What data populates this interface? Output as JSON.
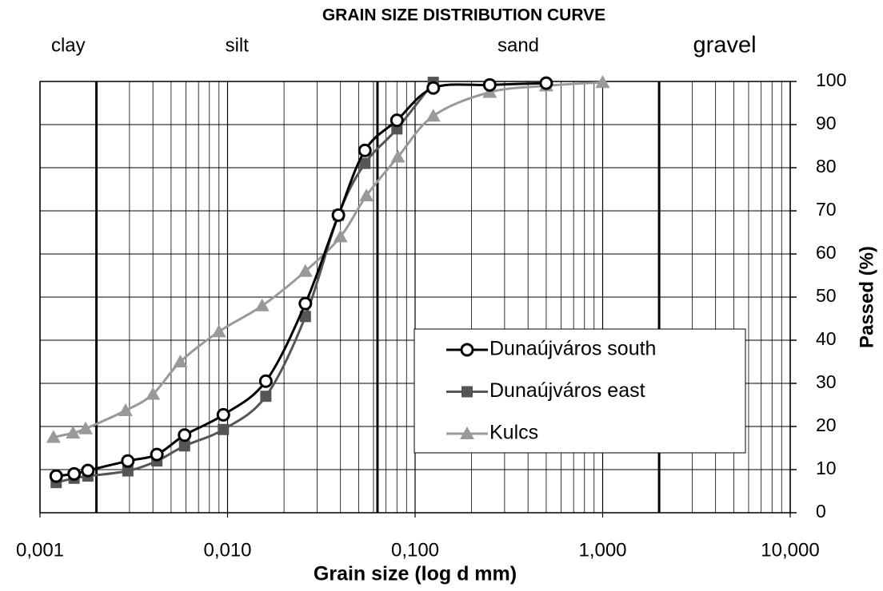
{
  "chart_data": {
    "type": "line",
    "title": "GRAIN SIZE DISTRIBUTION CURVE",
    "x_label": "Grain size (log d mm)",
    "y_label": "Passed (%)",
    "xscale": "log",
    "xlim": [
      0.001,
      10
    ],
    "xticks": [
      {
        "value": 0.001,
        "label": "0,001"
      },
      {
        "value": 0.01,
        "label": "0,010"
      },
      {
        "value": 0.1,
        "label": "0,100"
      },
      {
        "value": 1,
        "label": "1,000"
      },
      {
        "value": 10,
        "label": "10,000"
      }
    ],
    "ylim": [
      0,
      100
    ],
    "yticks": [
      0,
      10,
      20,
      30,
      40,
      50,
      60,
      70,
      80,
      90,
      100
    ],
    "y_axis_side": "right",
    "grid": true,
    "zones": [
      "clay",
      "silt",
      "sand",
      "gravel"
    ],
    "zone_boundaries": [
      0.002,
      0.063,
      2
    ],
    "legend": "lower right",
    "series": [
      {
        "name": "Dunaújváros south",
        "color": "#000000",
        "marker": "circle",
        "x": [
          0.00122,
          0.00152,
          0.0018,
          0.00294,
          0.0042,
          0.0059,
          0.0095,
          0.016,
          0.026,
          0.039,
          0.054,
          0.08,
          0.125,
          0.25,
          0.5
        ],
        "values": [
          8.5,
          9,
          9.8,
          12,
          13.5,
          18,
          22.7,
          30.5,
          48.5,
          69,
          84,
          91,
          98.5,
          99.2,
          99.6
        ]
      },
      {
        "name": "Dunaújváros east",
        "color": "#555555",
        "marker": "square",
        "x": [
          0.00122,
          0.00152,
          0.0018,
          0.00294,
          0.0042,
          0.0059,
          0.0095,
          0.016,
          0.026,
          0.039,
          0.054,
          0.08,
          0.125
        ],
        "values": [
          7,
          8,
          8.5,
          9.7,
          12,
          15.5,
          19.3,
          27,
          45.5,
          69,
          81,
          89,
          99.8
        ]
      },
      {
        "name": "Kulcs",
        "color": "#999999",
        "marker": "triangle",
        "x": [
          0.00118,
          0.0015,
          0.00175,
          0.00286,
          0.004,
          0.0056,
          0.009,
          0.0153,
          0.026,
          0.04,
          0.055,
          0.081,
          0.125,
          0.25,
          0.5,
          1.0
        ],
        "values": [
          17.5,
          18.5,
          19.5,
          23.7,
          27.5,
          35,
          42,
          48,
          56,
          64,
          73.5,
          82.5,
          92,
          97.5,
          99,
          99.8
        ]
      }
    ]
  }
}
